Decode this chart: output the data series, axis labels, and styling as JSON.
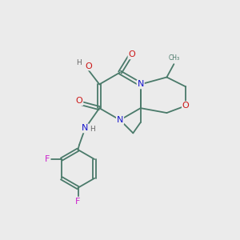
{
  "bg_color": "#ebebeb",
  "atom_colors": {
    "C": "#4a7a6a",
    "N": "#1818cc",
    "O": "#cc1818",
    "F": "#cc22cc",
    "H": "#666666"
  },
  "bond_color": "#4a7a6a",
  "lw": 1.3,
  "fs": 8.0,
  "fs_small": 6.5
}
